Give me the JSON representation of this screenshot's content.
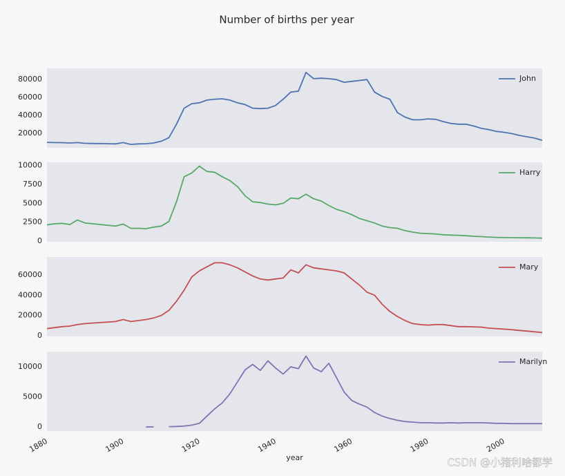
{
  "title": "Number of births per year",
  "watermark": "CSDN @小猪利啥都学",
  "chart_data": [
    {
      "type": "line",
      "xlim": [
        1880,
        2010
      ],
      "ylim": [
        3600,
        92500
      ],
      "yticks": [
        20000,
        40000,
        60000,
        80000
      ],
      "grid": false,
      "legend": "upper right",
      "x": [
        1880,
        1882,
        1884,
        1886,
        1888,
        1890,
        1892,
        1894,
        1896,
        1898,
        1900,
        1902,
        1904,
        1906,
        1908,
        1910,
        1912,
        1914,
        1916,
        1918,
        1920,
        1922,
        1924,
        1926,
        1928,
        1930,
        1932,
        1934,
        1936,
        1938,
        1940,
        1942,
        1944,
        1946,
        1948,
        1950,
        1952,
        1954,
        1956,
        1958,
        1960,
        1962,
        1964,
        1966,
        1968,
        1970,
        1972,
        1974,
        1976,
        1978,
        1980,
        1982,
        1984,
        1986,
        1988,
        1990,
        1992,
        1994,
        1996,
        1998,
        2000,
        2002,
        2004,
        2006,
        2008,
        2010
      ],
      "series": [
        {
          "name": "John",
          "color": "#4c72b0",
          "values": [
            9700,
            9500,
            9400,
            9000,
            9500,
            8600,
            8500,
            8400,
            8200,
            8000,
            9500,
            7500,
            8000,
            8200,
            9000,
            11000,
            15000,
            30000,
            48000,
            53000,
            54000,
            57000,
            58000,
            58500,
            57000,
            54000,
            52000,
            48000,
            47500,
            48000,
            51000,
            58000,
            66000,
            67000,
            88000,
            81000,
            81500,
            81000,
            80000,
            77000,
            78000,
            79000,
            80000,
            66000,
            61000,
            58000,
            43000,
            38000,
            35000,
            35000,
            36000,
            35500,
            33000,
            31000,
            30000,
            30000,
            28000,
            25500,
            24000,
            22000,
            21000,
            19500,
            17500,
            16000,
            14500,
            12000
          ]
        }
      ]
    },
    {
      "type": "line",
      "xlim": [
        1880,
        2010
      ],
      "ylim": [
        -80,
        10400
      ],
      "yticks": [
        0,
        2500,
        5000,
        7500,
        10000
      ],
      "grid": false,
      "legend": "upper right",
      "x": [
        1880,
        1882,
        1884,
        1886,
        1888,
        1890,
        1892,
        1894,
        1896,
        1898,
        1900,
        1902,
        1904,
        1906,
        1908,
        1910,
        1912,
        1914,
        1916,
        1918,
        1920,
        1922,
        1924,
        1926,
        1928,
        1930,
        1932,
        1934,
        1936,
        1938,
        1940,
        1942,
        1944,
        1946,
        1948,
        1950,
        1952,
        1954,
        1956,
        1958,
        1960,
        1962,
        1964,
        1966,
        1968,
        1970,
        1972,
        1974,
        1976,
        1978,
        1980,
        1982,
        1984,
        1986,
        1988,
        1990,
        1992,
        1994,
        1996,
        1998,
        2000,
        2002,
        2004,
        2006,
        2008,
        2010
      ],
      "series": [
        {
          "name": "Harry",
          "color": "#55a868",
          "values": [
            2150,
            2300,
            2350,
            2200,
            2800,
            2400,
            2300,
            2200,
            2100,
            2000,
            2250,
            1700,
            1700,
            1650,
            1850,
            2000,
            2600,
            5200,
            8500,
            9000,
            9900,
            9200,
            9100,
            8500,
            8000,
            7200,
            6000,
            5200,
            5100,
            4900,
            4800,
            5000,
            5700,
            5600,
            6200,
            5600,
            5300,
            4700,
            4200,
            3900,
            3500,
            3000,
            2700,
            2400,
            2000,
            1800,
            1700,
            1400,
            1200,
            1050,
            1000,
            950,
            850,
            800,
            780,
            720,
            650,
            600,
            550,
            500,
            480,
            470,
            460,
            450,
            430,
            400
          ]
        }
      ]
    },
    {
      "type": "line",
      "xlim": [
        1880,
        2010
      ],
      "ylim": [
        -700,
        77700
      ],
      "yticks": [
        0,
        20000,
        40000,
        60000
      ],
      "grid": false,
      "legend": "upper right",
      "x": [
        1880,
        1882,
        1884,
        1886,
        1888,
        1890,
        1892,
        1894,
        1896,
        1898,
        1900,
        1902,
        1904,
        1906,
        1908,
        1910,
        1912,
        1914,
        1916,
        1918,
        1920,
        1922,
        1924,
        1926,
        1928,
        1930,
        1932,
        1934,
        1936,
        1938,
        1940,
        1942,
        1944,
        1946,
        1948,
        1950,
        1952,
        1954,
        1956,
        1958,
        1960,
        1962,
        1964,
        1966,
        1968,
        1970,
        1972,
        1974,
        1976,
        1978,
        1980,
        1982,
        1984,
        1986,
        1988,
        1990,
        1992,
        1994,
        1996,
        1998,
        2000,
        2002,
        2004,
        2006,
        2008,
        2010
      ],
      "series": [
        {
          "name": "Mary",
          "color": "#c44e52",
          "values": [
            7000,
            8000,
            9000,
            9500,
            11000,
            12000,
            12500,
            13000,
            13500,
            14000,
            16000,
            14000,
            15000,
            16000,
            17500,
            20000,
            25000,
            34000,
            45000,
            58000,
            64000,
            68000,
            72000,
            72000,
            70000,
            67000,
            63000,
            59000,
            56000,
            55000,
            56000,
            57000,
            65000,
            62000,
            70000,
            67000,
            66000,
            65000,
            64000,
            62000,
            56000,
            50000,
            43000,
            40000,
            31000,
            24000,
            19000,
            15000,
            12000,
            11000,
            10500,
            11000,
            11000,
            10000,
            9000,
            9000,
            8800,
            8500,
            7500,
            7000,
            6500,
            6000,
            5200,
            4600,
            3900,
            3200
          ]
        }
      ]
    },
    {
      "type": "line",
      "xlim": [
        1880,
        2010
      ],
      "ylim": [
        -690,
        12530
      ],
      "yticks": [
        0,
        5000,
        10000
      ],
      "grid": false,
      "legend": "upper right",
      "xticks": [
        1880,
        1900,
        1920,
        1940,
        1960,
        1980,
        2000
      ],
      "xlabel": "year",
      "x": [
        1880,
        1882,
        1884,
        1886,
        1888,
        1890,
        1892,
        1894,
        1896,
        1898,
        1900,
        1902,
        1904,
        1906,
        1908,
        1910,
        1912,
        1914,
        1916,
        1918,
        1920,
        1922,
        1924,
        1926,
        1928,
        1930,
        1932,
        1934,
        1936,
        1938,
        1940,
        1942,
        1944,
        1946,
        1948,
        1950,
        1952,
        1954,
        1956,
        1958,
        1960,
        1962,
        1964,
        1966,
        1968,
        1970,
        1972,
        1974,
        1976,
        1978,
        1980,
        1982,
        1984,
        1986,
        1988,
        1990,
        1992,
        1994,
        1996,
        1998,
        2000,
        2002,
        2004,
        2006,
        2008,
        2010
      ],
      "series": [
        {
          "name": "Marilyn",
          "color": "#8172b2",
          "values": [
            null,
            null,
            null,
            null,
            null,
            null,
            null,
            null,
            null,
            null,
            null,
            null,
            null,
            10,
            10,
            null,
            50,
            80,
            150,
            300,
            600,
            1800,
            3000,
            4000,
            5500,
            7500,
            9500,
            10400,
            9400,
            11000,
            9800,
            8800,
            10000,
            9700,
            11800,
            9800,
            9200,
            10600,
            8200,
            5800,
            4400,
            3800,
            3300,
            2400,
            1800,
            1400,
            1100,
            900,
            800,
            700,
            700,
            650,
            650,
            700,
            650,
            700,
            700,
            700,
            650,
            600,
            600,
            550,
            550,
            550,
            550,
            550
          ]
        }
      ]
    }
  ]
}
